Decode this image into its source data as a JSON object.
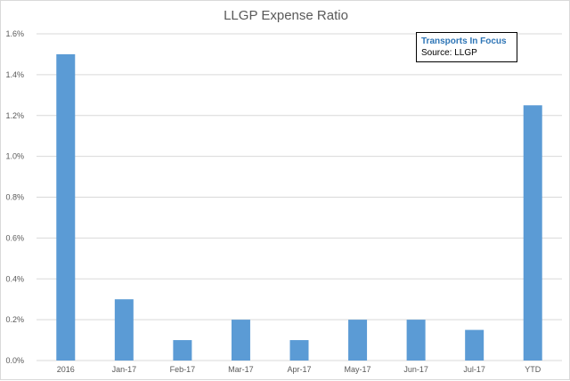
{
  "chart_data": {
    "type": "bar",
    "title": "LLGP Expense Ratio",
    "categories": [
      "2016",
      "Jan-17",
      "Feb-17",
      "Mar-17",
      "Apr-17",
      "May-17",
      "Jun-17",
      "Jul-17",
      "YTD"
    ],
    "values": [
      1.5,
      0.3,
      0.1,
      0.2,
      0.1,
      0.2,
      0.2,
      0.15,
      1.25
    ],
    "ylim": [
      0,
      1.6
    ],
    "yticks": [
      0,
      0.2,
      0.4,
      0.6,
      0.8,
      1.0,
      1.2,
      1.4,
      1.6
    ],
    "ytick_labels": [
      "0.0%",
      "0.2%",
      "0.4%",
      "0.6%",
      "0.8%",
      "1.0%",
      "1.2%",
      "1.4%",
      "1.6%"
    ],
    "xlabel": "",
    "ylabel": "",
    "grid": true,
    "legend": "none",
    "bar_color": "#5b9bd5",
    "grid_color": "#d9d9d9"
  },
  "annotation": {
    "title": "Transports In Focus",
    "source": "Source: LLGP",
    "title_color": "#2e75b6"
  }
}
